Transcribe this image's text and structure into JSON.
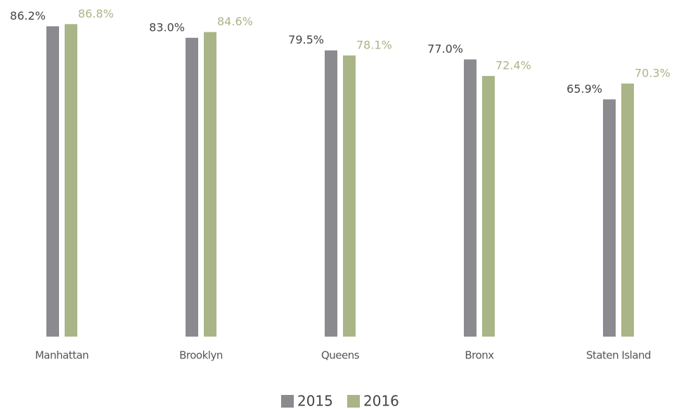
{
  "chart_data": {
    "type": "bar",
    "categories": [
      "Manhattan",
      "Brooklyn",
      "Queens",
      "Bronx",
      "Staten Island"
    ],
    "series": [
      {
        "name": "2015",
        "color": "#8b8a8f",
        "values": [
          86.2,
          83.0,
          79.5,
          77.0,
          65.9
        ],
        "value_labels": [
          "86.2%",
          "83.0%",
          "79.5%",
          "77.0%",
          "65.9%"
        ],
        "label_color": "#444444"
      },
      {
        "name": "2016",
        "color": "#a9b587",
        "values": [
          86.8,
          84.6,
          78.1,
          72.4,
          70.3
        ],
        "value_labels": [
          "86.8%",
          "84.6%",
          "78.1%",
          "72.4%",
          "70.3%"
        ],
        "label_color": "#a9b587"
      }
    ],
    "ylim": [
      0,
      93.5
    ],
    "grid": false
  }
}
